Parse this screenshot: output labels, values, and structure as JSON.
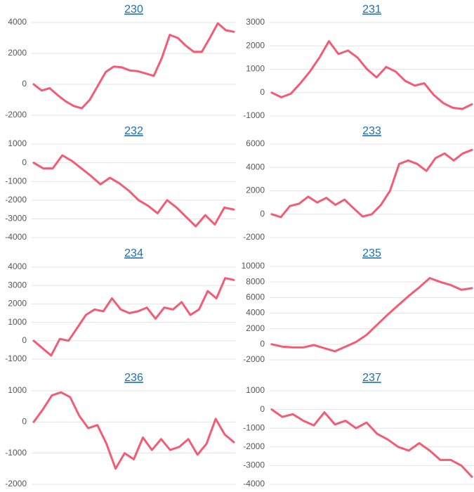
{
  "chart_data": [
    {
      "type": "line",
      "title": "230",
      "color": "#f25c75",
      "grid": true,
      "ylim": [
        -2000,
        4000
      ],
      "yticks": [
        -2000,
        0,
        2000,
        4000
      ],
      "values": [
        0,
        -400,
        -250,
        -700,
        -1100,
        -1400,
        -1550,
        -1000,
        -100,
        800,
        1150,
        1100,
        900,
        850,
        700,
        550,
        1700,
        3200,
        3000,
        2500,
        2100,
        2100,
        3000,
        3950,
        3500,
        3400
      ]
    },
    {
      "type": "line",
      "title": "231",
      "color": "#f25c75",
      "grid": true,
      "ylim": [
        -1000,
        3000
      ],
      "yticks": [
        -1000,
        0,
        1000,
        2000,
        3000
      ],
      "values": [
        0,
        -200,
        -50,
        400,
        900,
        1500,
        2200,
        1650,
        1800,
        1500,
        1000,
        650,
        1100,
        900,
        500,
        300,
        400,
        -100,
        -450,
        -650,
        -700,
        -500
      ]
    },
    {
      "type": "line",
      "title": "232",
      "color": "#f25c75",
      "grid": true,
      "ylim": [
        -4000,
        1000
      ],
      "yticks": [
        -4000,
        -3000,
        -2000,
        -1000,
        0,
        1000
      ],
      "values": [
        0,
        -300,
        -300,
        400,
        100,
        -300,
        -700,
        -1150,
        -800,
        -1100,
        -1500,
        -2000,
        -2300,
        -2700,
        -2000,
        -2400,
        -2900,
        -3400,
        -2800,
        -3300,
        -2400,
        -2500
      ]
    },
    {
      "type": "line",
      "title": "233",
      "color": "#f25c75",
      "grid": true,
      "ylim": [
        -2000,
        6000
      ],
      "yticks": [
        -2000,
        0,
        2000,
        4000,
        6000
      ],
      "values": [
        0,
        -250,
        700,
        900,
        1500,
        1000,
        1400,
        800,
        1250,
        500,
        -200,
        0,
        800,
        2000,
        4300,
        4600,
        4300,
        3700,
        4800,
        5200,
        4600,
        5200,
        5500
      ]
    },
    {
      "type": "line",
      "title": "234",
      "color": "#f25c75",
      "grid": true,
      "ylim": [
        -1000,
        4000
      ],
      "yticks": [
        -1000,
        0,
        1000,
        2000,
        3000,
        4000
      ],
      "values": [
        0,
        -400,
        -800,
        100,
        0,
        700,
        1400,
        1700,
        1600,
        2300,
        1700,
        1500,
        1600,
        1800,
        1200,
        1800,
        1700,
        2100,
        1400,
        1700,
        2700,
        2300,
        3400,
        3300
      ]
    },
    {
      "type": "line",
      "title": "235",
      "color": "#f25c75",
      "grid": true,
      "ylim": [
        -2000,
        10000
      ],
      "yticks": [
        -2000,
        0,
        2000,
        4000,
        6000,
        8000,
        10000
      ],
      "values": [
        0,
        -300,
        -400,
        -400,
        -100,
        -500,
        -900,
        -300,
        300,
        1200,
        2500,
        3800,
        5000,
        6200,
        7300,
        8500,
        8000,
        7600,
        7000,
        7200
      ]
    },
    {
      "type": "line",
      "title": "236",
      "color": "#f25c75",
      "grid": true,
      "ylim": [
        -2000,
        1000
      ],
      "yticks": [
        -2000,
        -1000,
        0,
        1000
      ],
      "values": [
        0,
        400,
        850,
        950,
        800,
        200,
        -200,
        -100,
        -700,
        -1500,
        -1000,
        -1200,
        -500,
        -900,
        -550,
        -900,
        -800,
        -550,
        -1050,
        -700,
        100,
        -400,
        -650
      ]
    },
    {
      "type": "line",
      "title": "237",
      "color": "#f25c75",
      "grid": true,
      "ylim": [
        -4000,
        1000
      ],
      "yticks": [
        -4000,
        -3000,
        -2000,
        -1000,
        0,
        1000
      ],
      "values": [
        0,
        -400,
        -250,
        -600,
        -850,
        -150,
        -800,
        -600,
        -1000,
        -700,
        -1300,
        -1600,
        -2000,
        -2200,
        -1800,
        -2200,
        -2700,
        -2700,
        -3000,
        -3600
      ]
    }
  ]
}
